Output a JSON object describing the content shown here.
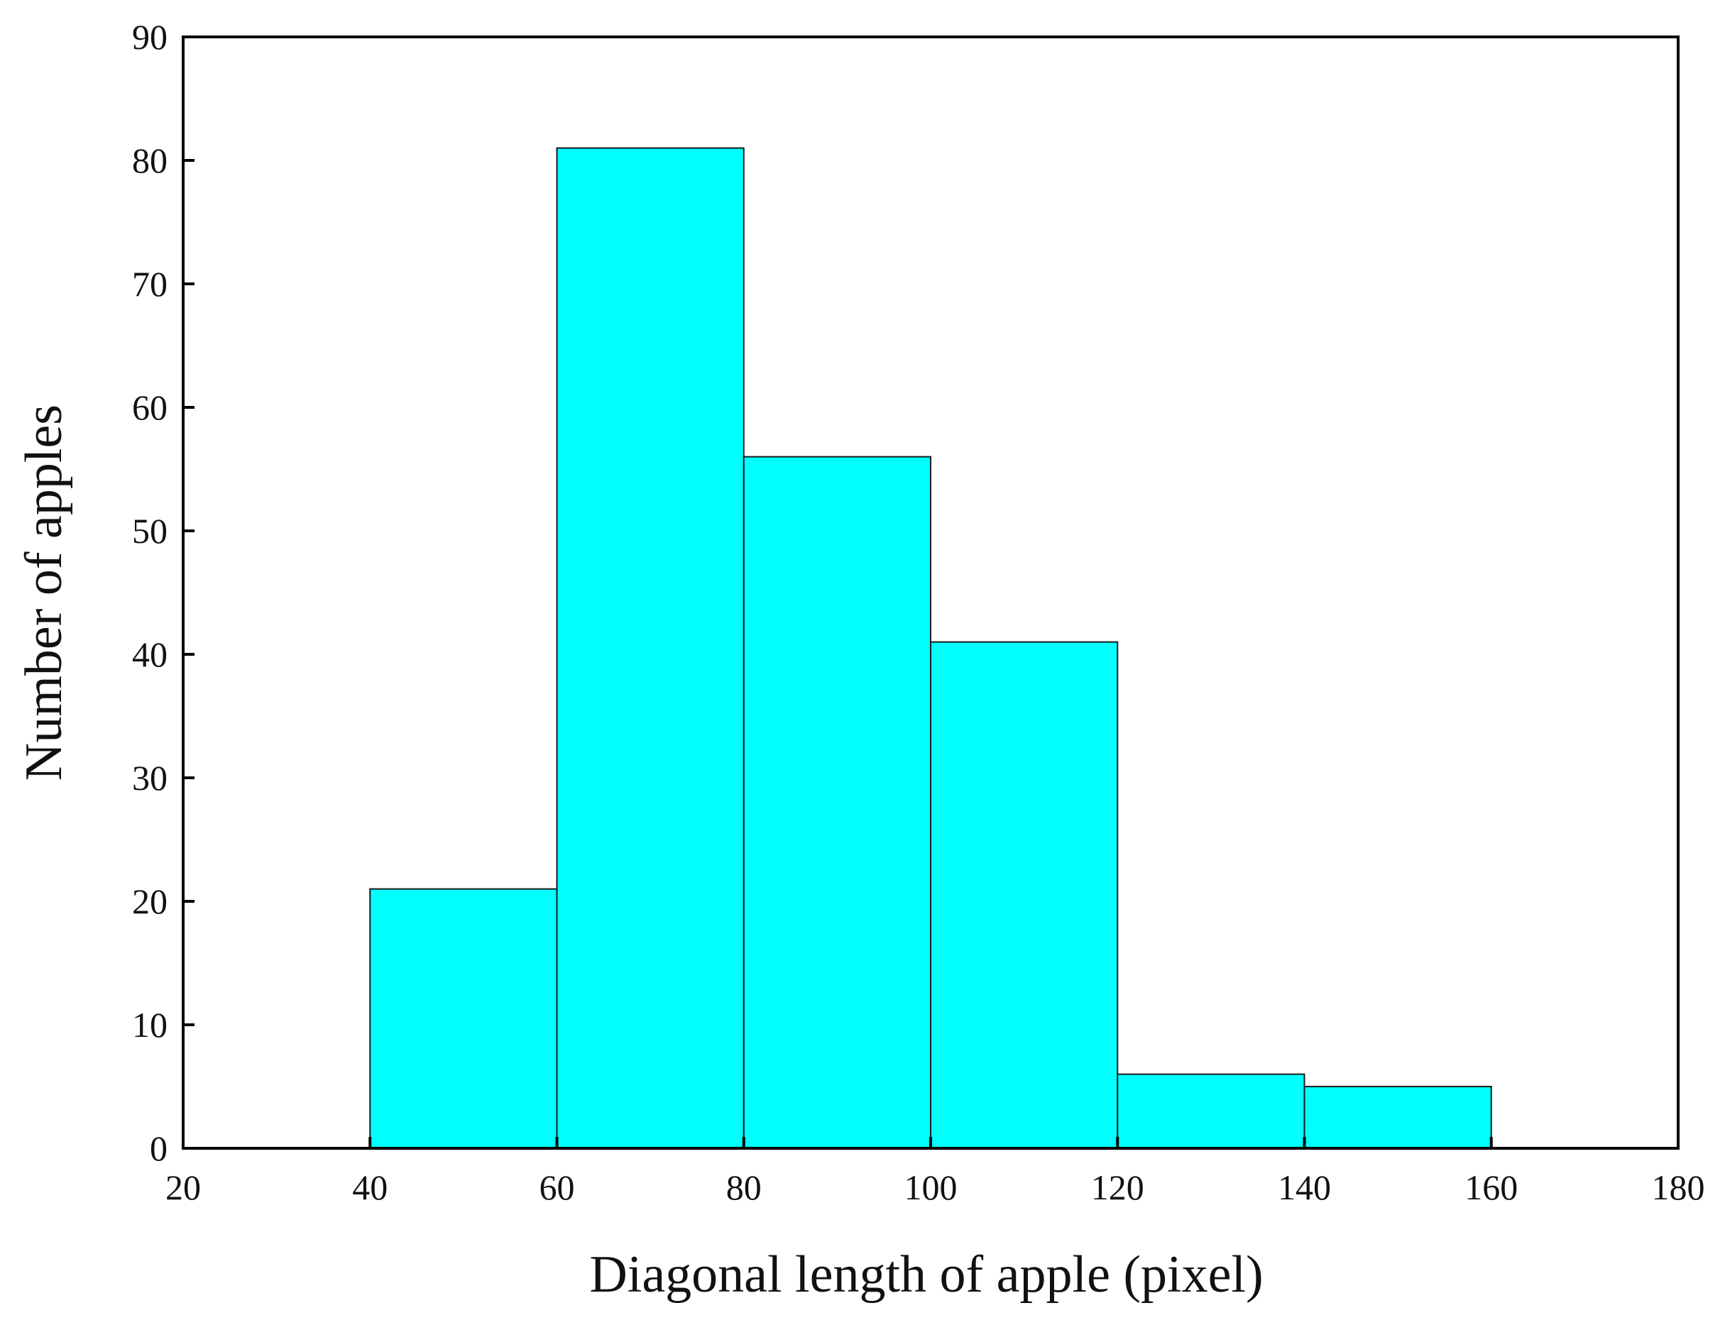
{
  "chart_data": {
    "type": "bar",
    "title": "",
    "xlabel": "Diagonal length of apple (pixel)",
    "ylabel": "Number of apples",
    "xlim": [
      20,
      180
    ],
    "ylim": [
      0,
      90
    ],
    "xticks": [
      20,
      40,
      60,
      80,
      100,
      120,
      140,
      160,
      180
    ],
    "yticks": [
      0,
      10,
      20,
      30,
      40,
      50,
      60,
      70,
      80,
      90
    ],
    "bins": [
      {
        "x0": 40,
        "x1": 60,
        "value": 21
      },
      {
        "x0": 60,
        "x1": 80,
        "value": 81
      },
      {
        "x0": 80,
        "x1": 100,
        "value": 56
      },
      {
        "x0": 100,
        "x1": 120,
        "value": 41
      },
      {
        "x0": 120,
        "x1": 140,
        "value": 6
      },
      {
        "x0": 140,
        "x1": 160,
        "value": 5
      }
    ],
    "grid": false,
    "legend": "none",
    "colors": {
      "bar_fill": "#00FFFF",
      "bar_stroke": "#1a1a1a",
      "axis": "#000000"
    }
  }
}
